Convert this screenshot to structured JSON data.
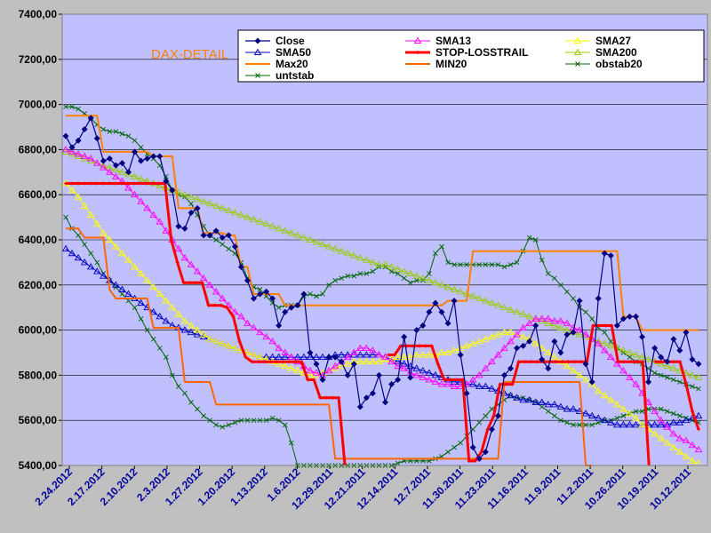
{
  "chart_data": {
    "type": "line",
    "title": "",
    "watermark": "DAX-DETAIL",
    "xlabel": "",
    "ylabel": "",
    "ylim": [
      5400,
      7400
    ],
    "y_ticks": [
      "7400,00",
      "7200,00",
      "7000,00",
      "6800,00",
      "6600,00",
      "6400,00",
      "6200,00",
      "6000,00",
      "5800,00",
      "5600,00",
      "5400,00"
    ],
    "x_ticks": [
      "2.24.2012",
      "2.17.2012",
      "2.10.2012",
      "2.3.2012",
      "1.27.2012",
      "1.20.2012",
      "1.13.2012",
      "1.6.2012",
      "12.29.2011",
      "12.21.2011",
      "12.14.2011",
      "12.7.2011",
      "11.30.2011",
      "11.23.2011",
      "11.16.2011",
      "11.9.2011",
      "11.2.2011",
      "10.26.2011",
      "10.19.2011",
      "10.12.2011"
    ],
    "x_axis_reversed": true,
    "grid": true,
    "legend_position": "top-right",
    "plot_bg": "#c0c0ff",
    "series": [
      {
        "name": "Close",
        "color": "#000080",
        "marker": "diamond",
        "values": [
          6860,
          6810,
          6840,
          6890,
          6940,
          6850,
          6750,
          6760,
          6730,
          6740,
          6700,
          6790,
          6750,
          6760,
          6770,
          6770,
          6660,
          6620,
          6460,
          6450,
          6520,
          6540,
          6420,
          6420,
          6440,
          6410,
          6420,
          6370,
          6280,
          6220,
          6140,
          6160,
          6170,
          6140,
          6020,
          6080,
          6100,
          6110,
          6160,
          5900,
          5850,
          5780,
          5880,
          5880,
          5860,
          5800,
          5850,
          5660,
          5700,
          5720,
          5800,
          5680,
          5760,
          5780,
          5970,
          5790,
          6000,
          6020,
          6080,
          6120,
          6080,
          6030,
          6130,
          5890,
          5720,
          5480,
          5430,
          5460,
          5560,
          5620,
          5800,
          5830,
          5920,
          5930,
          5950,
          6020,
          5870,
          5830,
          5950,
          5900,
          5980,
          5990,
          6130,
          5850,
          5770,
          6140,
          6340,
          6330,
          6020,
          6050,
          6060,
          6060,
          5970,
          5770,
          5920,
          5880,
          5860,
          5960,
          5910,
          5990,
          5870,
          5850
        ]
      },
      {
        "name": "SMA13",
        "color": "#ff00ff",
        "marker": "triangle",
        "values": [
          6800,
          6790,
          6780,
          6770,
          6760,
          6740,
          6720,
          6700,
          6680,
          6660,
          6630,
          6600,
          6570,
          6540,
          6510,
          6480,
          6440,
          6400,
          6360,
          6320,
          6290,
          6260,
          6230,
          6200,
          6170,
          6140,
          6110,
          6080,
          6060,
          6030,
          6010,
          5990,
          5970,
          5950,
          5920,
          5900,
          5880,
          5860,
          5840,
          5820,
          5810,
          5800,
          5820,
          5840,
          5860,
          5880,
          5900,
          5920,
          5920,
          5910,
          5890,
          5880,
          5860,
          5840,
          5830,
          5810,
          5800,
          5790,
          5780,
          5770,
          5760,
          5760,
          5750,
          5750,
          5760,
          5780,
          5800,
          5830,
          5860,
          5890,
          5920,
          5950,
          5980,
          6010,
          6030,
          6050,
          6050,
          6050,
          6040,
          6040,
          6030,
          6010,
          6000,
          5980,
          5960,
          5940,
          5910,
          5880,
          5850,
          5820,
          5790,
          5760,
          5720,
          5680,
          5640,
          5600,
          5570,
          5540,
          5520,
          5510,
          5490,
          5470
        ]
      },
      {
        "name": "SMA27",
        "color": "#ffff00",
        "marker": "triangle",
        "values": [
          6650,
          6620,
          6590,
          6550,
          6510,
          6470,
          6430,
          6400,
          6370,
          6340,
          6310,
          6280,
          6250,
          6220,
          6190,
          6160,
          6130,
          6100,
          6070,
          6040,
          6020,
          6000,
          5980,
          5960,
          5950,
          5940,
          5930,
          5920,
          5910,
          5900,
          5890,
          5880,
          5870,
          5860,
          5850,
          5840,
          5830,
          5820,
          5810,
          5800,
          5800,
          5810,
          5820,
          5830,
          5840,
          5850,
          5860,
          5860,
          5860,
          5860,
          5860,
          5870,
          5870,
          5880,
          5880,
          5880,
          5890,
          5890,
          5890,
          5890,
          5900,
          5900,
          5910,
          5920,
          5930,
          5940,
          5950,
          5960,
          5970,
          5980,
          5990,
          5990,
          5980,
          5970,
          5960,
          5940,
          5920,
          5900,
          5880,
          5860,
          5840,
          5820,
          5800,
          5780,
          5760,
          5730,
          5710,
          5690,
          5670,
          5650,
          5630,
          5610,
          5580,
          5560,
          5540,
          5520,
          5500,
          5480,
          5460,
          5440,
          5420,
          5410
        ]
      },
      {
        "name": "SMA50",
        "color": "#0000c0",
        "marker": "triangle",
        "values": [
          6360,
          6340,
          6320,
          6300,
          6280,
          6260,
          6240,
          6220,
          6200,
          6180,
          6160,
          6140,
          6120,
          6100,
          6080,
          6060,
          6040,
          6020,
          6010,
          6000,
          5990,
          5980,
          5970,
          5960,
          5950,
          5940,
          5930,
          5920,
          5910,
          5900,
          5890,
          5880,
          5880,
          5880,
          5880,
          5880,
          5880,
          5880,
          5880,
          5880,
          5880,
          5880,
          5880,
          5890,
          5890,
          5890,
          5890,
          5890,
          5890,
          5890,
          5890,
          5880,
          5870,
          5860,
          5850,
          5840,
          5830,
          5820,
          5810,
          5800,
          5790,
          5780,
          5770,
          5770,
          5760,
          5760,
          5750,
          5750,
          5740,
          5730,
          5720,
          5710,
          5700,
          5690,
          5690,
          5680,
          5680,
          5670,
          5670,
          5660,
          5650,
          5650,
          5640,
          5630,
          5620,
          5610,
          5600,
          5590,
          5580,
          5580,
          5580,
          5580,
          5580,
          5580,
          5580,
          5580,
          5580,
          5590,
          5590,
          5600,
          5610,
          5620
        ]
      },
      {
        "name": "STOP-LOSSTRAIL",
        "color": "#ff0000",
        "marker": "plus",
        "values": [
          6650,
          6650,
          6650,
          6650,
          6650,
          6650,
          6650,
          6650,
          6650,
          6650,
          6650,
          6650,
          6650,
          6650,
          6650,
          6650,
          6650,
          6400,
          6300,
          6210,
          6210,
          6210,
          6210,
          6110,
          6110,
          6110,
          6100,
          6060,
          5950,
          5880,
          5860,
          5860,
          5860,
          5860,
          5860,
          5860,
          5860,
          5860,
          5860,
          5780,
          5780,
          5700,
          5700,
          5700,
          5700,
          null,
          null,
          null,
          null,
          null,
          null,
          null,
          5890,
          5890,
          5930,
          5930,
          5930,
          5930,
          5930,
          5930,
          5850,
          5780,
          5780,
          5780,
          5780,
          5420,
          5420,
          5460,
          5560,
          5620,
          5760,
          5760,
          5760,
          5860,
          5860,
          5860,
          5860,
          5860,
          5860,
          5860,
          5860,
          5860,
          5860,
          5860,
          5860,
          6020,
          6020,
          6020,
          6020,
          5860,
          5860,
          5860,
          5860,
          5860,
          null,
          5860,
          5860,
          5860,
          5860,
          5860,
          5760,
          5640,
          5560
        ]
      },
      {
        "name": "SMA200",
        "color": "#99cc00",
        "marker": "triangle",
        "values": [
          6790,
          6780,
          6770,
          6760,
          6750,
          6740,
          6730,
          6720,
          6710,
          6700,
          6690,
          6680,
          6670,
          6660,
          6650,
          6640,
          6630,
          6620,
          6610,
          6600,
          6590,
          6580,
          6570,
          6560,
          6550,
          6540,
          6530,
          6520,
          6510,
          6500,
          6490,
          6480,
          6470,
          6460,
          6450,
          6440,
          6430,
          6420,
          6410,
          6400,
          6390,
          6380,
          6370,
          6360,
          6350,
          6340,
          6330,
          6320,
          6310,
          6300,
          6290,
          6290,
          6280,
          6270,
          6260,
          6250,
          6240,
          6230,
          6220,
          6210,
          6200,
          6190,
          6180,
          6170,
          6160,
          6150,
          6140,
          6130,
          6120,
          6110,
          6100,
          6090,
          6080,
          6070,
          6060,
          6050,
          6040,
          6030,
          6020,
          6010,
          6000,
          5990,
          5980,
          5970,
          5960,
          5950,
          5940,
          5930,
          5920,
          5910,
          5900,
          5890,
          5880,
          5870,
          5860,
          5850,
          5840,
          5830,
          5820,
          5810,
          5800,
          5790
        ]
      },
      {
        "name": "Max20",
        "color": "#ff8000",
        "marker": "none",
        "values": [
          6950,
          6950,
          6950,
          6950,
          6950,
          6950,
          6790,
          6790,
          6790,
          6790,
          6790,
          6790,
          6790,
          6790,
          6770,
          6770,
          6770,
          6770,
          6540,
          6540,
          6540,
          6540,
          6430,
          6430,
          6430,
          6430,
          6420,
          6420,
          6280,
          6280,
          6160,
          6160,
          6160,
          6160,
          6160,
          6110,
          6110,
          6110,
          6110,
          6110,
          6110,
          6110,
          6110,
          6110,
          6110,
          6110,
          6110,
          6110,
          6110,
          6110,
          6110,
          6110,
          6110,
          6110,
          6110,
          6110,
          6110,
          6110,
          6110,
          6110,
          6110,
          6130,
          6130,
          6130,
          6130,
          6350,
          6350,
          6350,
          6350,
          6350,
          6350,
          6350,
          6350,
          6350,
          6350,
          6350,
          6350,
          6350,
          6350,
          6350,
          6350,
          6350,
          6350,
          6350,
          6350,
          6350,
          6350,
          6350,
          6350,
          6060,
          6060,
          6060,
          6000,
          6000,
          6000,
          6000,
          6000,
          6000,
          6000,
          6000,
          6000,
          6000
        ]
      },
      {
        "name": "MIN20",
        "color": "#ff6600",
        "marker": "none",
        "values": [
          6450,
          6450,
          6450,
          6410,
          6410,
          6410,
          6410,
          6180,
          6140,
          6140,
          6140,
          6140,
          6140,
          6140,
          6010,
          6010,
          6010,
          6010,
          6010,
          5770,
          5770,
          5770,
          5770,
          5770,
          5670,
          5670,
          5670,
          5670,
          5670,
          5670,
          5670,
          5670,
          5670,
          5670,
          5670,
          5670,
          5670,
          5670,
          5670,
          5670,
          5670,
          5670,
          5670,
          5430,
          5430,
          5430,
          5430,
          5430,
          5430,
          5430,
          5430,
          5430,
          5430,
          5430,
          5430,
          5430,
          5430,
          5430,
          5430,
          5430,
          5430,
          5430,
          5430,
          5430,
          5430,
          5430,
          5430,
          5430,
          5430,
          5430,
          5770,
          5770,
          5770,
          5770,
          5770,
          5770,
          5770,
          5770,
          5770,
          5770,
          5770,
          5770,
          5770,
          5400,
          null,
          null,
          null,
          null,
          null,
          null,
          null,
          null,
          null,
          null,
          null,
          null,
          null,
          null,
          null,
          null,
          null,
          null
        ]
      },
      {
        "name": "obstab20",
        "color": "#006600",
        "marker": "x",
        "values": [
          6990,
          6990,
          6980,
          6960,
          6940,
          6910,
          6890,
          6880,
          6880,
          6870,
          6860,
          6840,
          6810,
          6780,
          6760,
          6730,
          6680,
          6620,
          6600,
          6590,
          6560,
          6510,
          6460,
          6420,
          6400,
          6380,
          6360,
          6340,
          6300,
          6230,
          6190,
          6180,
          6150,
          6120,
          6100,
          6110,
          6110,
          6110,
          6150,
          6160,
          6150,
          6160,
          6200,
          6220,
          6230,
          6240,
          6240,
          6250,
          6250,
          6260,
          6280,
          6280,
          6260,
          6250,
          6230,
          6210,
          6220,
          6220,
          6250,
          6340,
          6370,
          6300,
          6290,
          6290,
          6290,
          6290,
          6290,
          6290,
          6290,
          6290,
          6280,
          6290,
          6300,
          6350,
          6410,
          6400,
          6310,
          6250,
          6230,
          6200,
          6170,
          6140,
          6100,
          6080,
          6050,
          6010,
          5990,
          5950,
          5920,
          5900,
          5880,
          5860,
          5850,
          5830,
          5810,
          5800,
          5790,
          5780,
          5770,
          5760,
          5750,
          5740
        ]
      },
      {
        "name": "untstab",
        "color": "#006600",
        "marker": "x",
        "values": [
          6500,
          6450,
          6420,
          6380,
          6340,
          6300,
          6250,
          6220,
          6190,
          6160,
          6130,
          6100,
          6050,
          6000,
          5960,
          5920,
          5880,
          5800,
          5750,
          5720,
          5680,
          5650,
          5620,
          5600,
          5580,
          5570,
          5580,
          5590,
          5600,
          5600,
          5600,
          5600,
          5600,
          5610,
          5600,
          5580,
          5500,
          5400,
          5400,
          5400,
          5400,
          5400,
          5400,
          5400,
          5400,
          5400,
          5400,
          5400,
          5400,
          5400,
          5400,
          5400,
          5400,
          5410,
          5420,
          5420,
          5420,
          5420,
          5420,
          5430,
          5440,
          5460,
          5480,
          5500,
          5530,
          5560,
          5590,
          5620,
          5650,
          5670,
          5690,
          5710,
          5700,
          5700,
          5690,
          5680,
          5660,
          5640,
          5620,
          5600,
          5590,
          5580,
          5580,
          5580,
          5580,
          5590,
          5600,
          5600,
          5610,
          5620,
          5630,
          5640,
          5640,
          5650,
          5650,
          5650,
          5640,
          5630,
          5620,
          5610,
          5600,
          5590
        ]
      }
    ]
  },
  "legend": {
    "items": [
      "Close",
      "SMA13",
      "SMA27",
      "SMA50",
      "STOP-LOSSTRAIL",
      "SMA200",
      "Max20",
      "MIN20",
      "obstab20",
      "untstab"
    ]
  }
}
